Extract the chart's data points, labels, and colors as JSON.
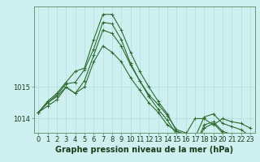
{
  "xlabel": "Graphe pression niveau de la mer (hPa)",
  "x": [
    0,
    1,
    2,
    3,
    4,
    5,
    6,
    7,
    8,
    9,
    10,
    11,
    12,
    13,
    14,
    15,
    16,
    17,
    18,
    19,
    20,
    21,
    22,
    23
  ],
  "series": [
    [
      1014.2,
      1014.5,
      1014.7,
      1015.0,
      1014.8,
      1015.0,
      1015.8,
      1016.3,
      1016.1,
      1015.8,
      1015.3,
      1014.9,
      1014.5,
      1014.2,
      1013.8,
      1013.6,
      1013.5,
      1014.0,
      1014.0,
      1013.8,
      1014.0,
      1013.9,
      1013.85,
      1013.7
    ],
    [
      1014.2,
      1014.4,
      1014.6,
      1015.0,
      1014.8,
      1015.2,
      1016.0,
      1016.8,
      1016.7,
      1016.3,
      1015.7,
      1015.2,
      1014.75,
      1014.45,
      1014.1,
      1013.65,
      1013.55,
      1013.4,
      1014.05,
      1014.15,
      1013.85,
      1013.75,
      1013.65,
      1013.45
    ],
    [
      1014.2,
      1014.5,
      1014.75,
      1015.1,
      1015.15,
      1015.55,
      1016.2,
      1017.05,
      1017.0,
      1016.5,
      1015.75,
      1015.2,
      1014.7,
      1014.3,
      1013.95,
      1013.5,
      1013.4,
      1013.15,
      1013.8,
      1013.9,
      1013.6,
      1013.5,
      1013.4,
      1013.2
    ],
    [
      1014.2,
      1014.55,
      1014.8,
      1015.15,
      1015.5,
      1015.6,
      1016.5,
      1017.3,
      1017.3,
      1016.8,
      1016.1,
      1015.5,
      1015.0,
      1014.55,
      1014.15,
      1013.6,
      1013.45,
      1013.1,
      1013.7,
      1013.85,
      1013.55,
      1013.4,
      1013.3,
      1013.1
    ]
  ],
  "line_color": "#2d6a2d",
  "marker": "+",
  "marker_size": 3,
  "bg_color": "#cff0f0",
  "grid_color": "#b0dede",
  "ylim": [
    1013.55,
    1017.55
  ],
  "yticks": [
    1014,
    1015
  ],
  "ytick_labels": [
    "1014",
    "1015"
  ],
  "xticks": [
    0,
    1,
    2,
    3,
    4,
    5,
    6,
    7,
    8,
    9,
    10,
    11,
    12,
    13,
    14,
    15,
    16,
    17,
    18,
    19,
    20,
    21,
    22,
    23
  ],
  "xlabel_fontsize": 7,
  "tick_fontsize": 6,
  "linewidth": 0.8
}
